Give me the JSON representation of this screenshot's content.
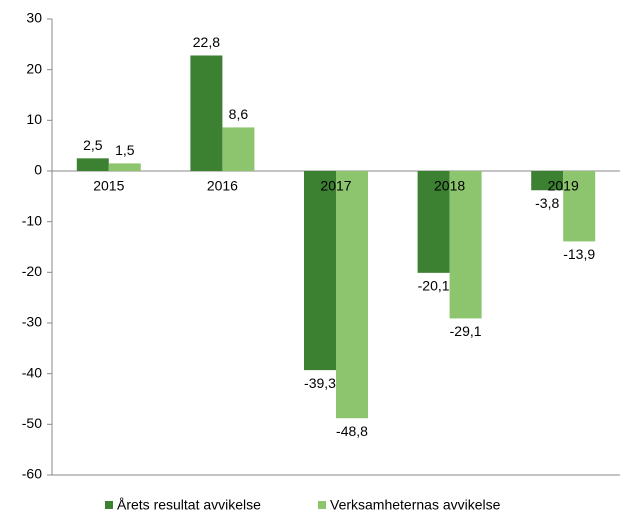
{
  "chart_data": {
    "type": "bar",
    "categories": [
      "2015",
      "2016",
      "2017",
      "2018",
      "2019"
    ],
    "series": [
      {
        "name": "Årets resultat avvikelse",
        "color": "#3b8131",
        "values": [
          2.5,
          22.8,
          -39.3,
          -20.1,
          -3.8
        ],
        "value_labels": [
          "2,5",
          "22,8",
          "-39,3",
          "-20,1",
          "-3,8"
        ]
      },
      {
        "name": "Verksamheternas avvikelse",
        "color": "#8dc46e",
        "values": [
          1.5,
          8.6,
          -48.8,
          -29.1,
          -13.9
        ],
        "value_labels": [
          "1,5",
          "8,6",
          "-48,8",
          "-29,1",
          "-13,9"
        ]
      }
    ],
    "ylim": [
      -60,
      30
    ],
    "yticks": [
      30,
      20,
      10,
      0,
      -10,
      -20,
      -30,
      -40,
      -50,
      -60
    ],
    "legend": "bottom"
  }
}
